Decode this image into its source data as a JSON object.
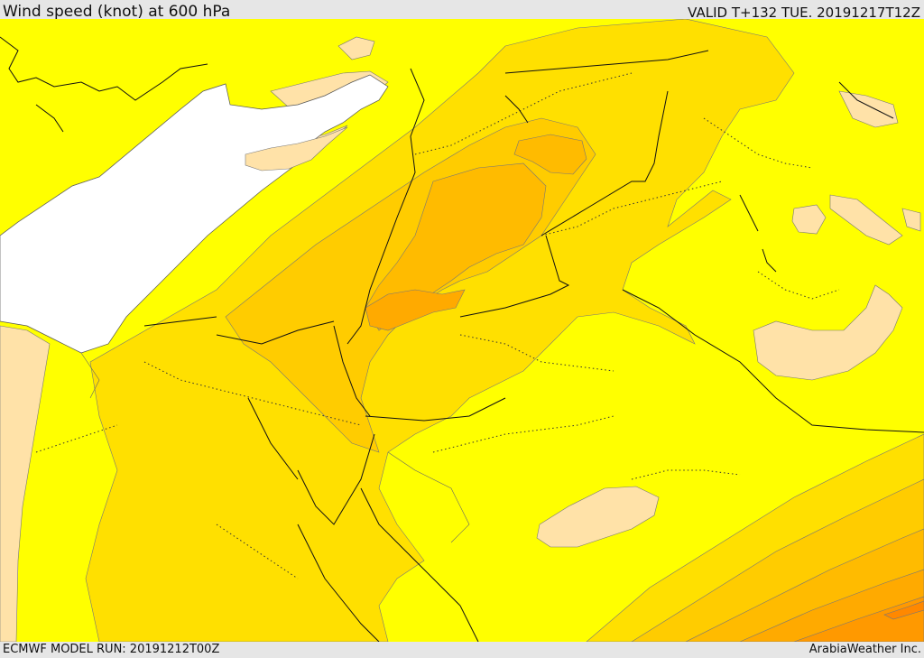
{
  "header": {
    "title": "Wind speed (knot) at 600 hPa",
    "valid": "VALID T+132 TUE. 20191217T12Z"
  },
  "footer": {
    "model_run": "ECMWF MODEL RUN: 20191212T00Z",
    "credit": "ArabiaWeather Inc."
  },
  "map": {
    "colors": {
      "sea_mask": "#ffffff",
      "band_low": "#ffe2a8",
      "band_1": "#ffff00",
      "band_2": "#ffe000",
      "band_3": "#ffcc00",
      "band_4": "#ffbb00",
      "band_5": "#ffaa00",
      "band_6": "#ff9900",
      "band_7": "#ff8800"
    }
  }
}
